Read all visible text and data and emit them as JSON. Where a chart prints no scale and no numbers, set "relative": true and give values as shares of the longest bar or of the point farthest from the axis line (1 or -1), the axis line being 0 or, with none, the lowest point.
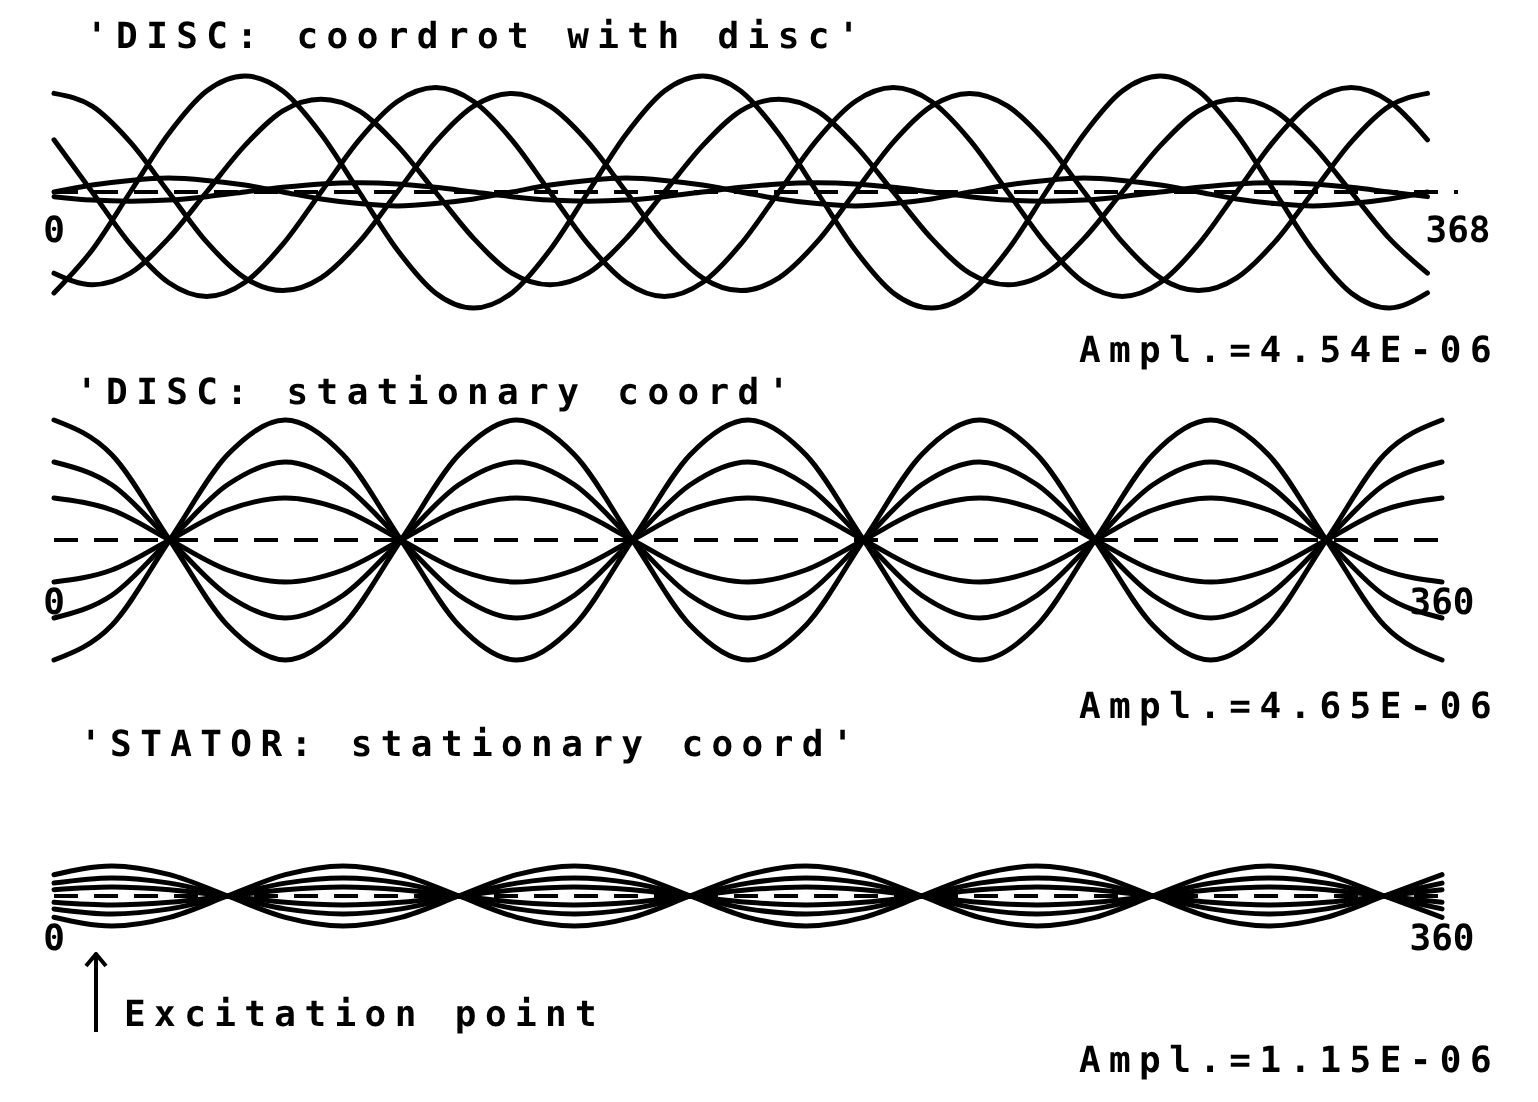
{
  "chart_data": [
    {
      "type": "line",
      "title": "'DISC: coordrot with disc'",
      "relative": true,
      "marker": "none",
      "line_style": "solid",
      "xlim": [
        0,
        368
      ],
      "xticks": [
        0,
        368
      ],
      "ref_lines": [
        {
          "axis": "y",
          "value": 0,
          "line_style": "dashed",
          "color": "#000000"
        }
      ],
      "annotations": [
        "Ampl.=4.54E-06"
      ],
      "x": [
        0,
        10,
        20,
        30,
        40,
        50,
        60,
        70,
        80,
        90,
        100,
        110,
        120,
        130,
        140,
        150,
        160,
        170,
        180,
        190,
        200,
        210,
        220,
        230,
        240,
        250,
        260,
        270,
        280,
        290,
        300,
        310,
        320,
        330,
        340,
        350,
        360
      ],
      "series": [
        {
          "color": "#000000",
          "values": [
            0.85,
            0.74,
            0.43,
            0,
            -0.43,
            -0.74,
            -0.85,
            -0.74,
            -0.43,
            0,
            0.43,
            0.74,
            0.85,
            0.74,
            0.43,
            0,
            -0.43,
            -0.74,
            -0.85,
            -0.74,
            -0.43,
            0,
            0.43,
            0.74,
            0.85,
            0.74,
            0.43,
            0,
            -0.43,
            -0.74,
            -0.85,
            -0.74,
            -0.43,
            0,
            0.43,
            0.74,
            0.85
          ]
        },
        {
          "color": "#000000",
          "values": [
            -0.87,
            -0.5,
            0,
            0.5,
            0.87,
            1,
            0.87,
            0.5,
            0,
            -0.5,
            -0.87,
            -1,
            -0.87,
            -0.5,
            0,
            0.5,
            0.87,
            1,
            0.87,
            0.5,
            0,
            -0.5,
            -0.87,
            -1,
            -0.87,
            -0.5,
            0,
            0.5,
            0.87,
            1,
            0.87,
            0.5,
            0,
            -0.5,
            -0.87,
            -1,
            -0.87
          ]
        },
        {
          "color": "#000000",
          "values": [
            -0.7,
            -0.8,
            -0.7,
            -0.4,
            0,
            0.4,
            0.7,
            0.8,
            0.7,
            0.4,
            0,
            -0.4,
            -0.7,
            -0.8,
            -0.7,
            -0.4,
            0,
            0.4,
            0.7,
            0.8,
            0.7,
            0.4,
            0,
            -0.4,
            -0.7,
            -0.8,
            -0.7,
            -0.4,
            0,
            0.4,
            0.7,
            0.8,
            0.7,
            0.4,
            0,
            -0.4,
            -0.7
          ]
        },
        {
          "color": "#000000",
          "values": [
            0.45,
            0,
            -0.45,
            -0.78,
            -0.9,
            -0.78,
            -0.45,
            0,
            0.45,
            0.78,
            0.9,
            0.78,
            0.45,
            0,
            -0.45,
            -0.78,
            -0.9,
            -0.78,
            -0.45,
            0,
            0.45,
            0.78,
            0.9,
            0.78,
            0.45,
            0,
            -0.45,
            -0.78,
            -0.9,
            -0.78,
            -0.45,
            0,
            0.45,
            0.78,
            0.9,
            0.78,
            0.45
          ]
        },
        {
          "color": "#000000",
          "values": [
            0,
            0.06,
            0.1,
            0.12,
            0.1,
            0.06,
            0,
            -0.06,
            -0.1,
            -0.12,
            -0.1,
            -0.06,
            0,
            0.06,
            0.1,
            0.12,
            0.1,
            0.06,
            0,
            -0.06,
            -0.1,
            -0.12,
            -0.1,
            -0.06,
            0,
            0.06,
            0.1,
            0.12,
            0.1,
            0.06,
            0,
            -0.06,
            -0.1,
            -0.12,
            -0.1,
            -0.06,
            0
          ]
        },
        {
          "color": "#000000",
          "values": [
            -0.04,
            -0.07,
            -0.08,
            -0.07,
            -0.04,
            0,
            0.04,
            0.07,
            0.08,
            0.07,
            0.04,
            0,
            -0.04,
            -0.07,
            -0.08,
            -0.07,
            -0.04,
            0,
            0.04,
            0.07,
            0.08,
            0.07,
            0.04,
            0,
            -0.04,
            -0.07,
            -0.08,
            -0.07,
            -0.04,
            0,
            0.04,
            0.07,
            0.08,
            0.07,
            0.04,
            0,
            -0.04
          ]
        }
      ]
    },
    {
      "type": "line",
      "title": "'DISC: stationary coord'",
      "relative": true,
      "marker": "none",
      "line_style": "solid",
      "xlim": [
        0,
        360
      ],
      "xticks": [
        0,
        360
      ],
      "ref_lines": [
        {
          "axis": "y",
          "value": 0,
          "line_style": "dashed",
          "color": "#000000"
        }
      ],
      "annotations": [
        "Ampl.=4.65E-06"
      ],
      "x": [
        0,
        15,
        30,
        45,
        60,
        75,
        90,
        105,
        120,
        135,
        150,
        165,
        180,
        195,
        210,
        225,
        240,
        255,
        270,
        285,
        300,
        315,
        330,
        345,
        360
      ],
      "series": [
        {
          "color": "#000000",
          "values": [
            1,
            0.71,
            0,
            -0.71,
            -1,
            -0.71,
            0,
            0.71,
            1,
            0.71,
            0,
            -0.71,
            -1,
            -0.71,
            0,
            0.71,
            1,
            0.71,
            0,
            -0.71,
            -1,
            -0.71,
            0,
            0.71,
            1
          ]
        },
        {
          "color": "#000000",
          "values": [
            0.65,
            0.46,
            0,
            -0.46,
            -0.65,
            -0.46,
            0,
            0.46,
            0.65,
            0.46,
            0,
            -0.46,
            -0.65,
            -0.46,
            0,
            0.46,
            0.65,
            0.46,
            0,
            -0.46,
            -0.65,
            -0.46,
            0,
            0.46,
            0.65
          ]
        },
        {
          "color": "#000000",
          "values": [
            0.35,
            0.25,
            0,
            -0.25,
            -0.35,
            -0.25,
            0,
            0.25,
            0.35,
            0.25,
            0,
            -0.25,
            -0.35,
            -0.25,
            0,
            0.25,
            0.35,
            0.25,
            0,
            -0.25,
            -0.35,
            -0.25,
            0,
            0.25,
            0.35
          ]
        },
        {
          "color": "#000000",
          "values": [
            -0.35,
            -0.25,
            0,
            0.25,
            0.35,
            0.25,
            0,
            -0.25,
            -0.35,
            -0.25,
            0,
            0.25,
            0.35,
            0.25,
            0,
            -0.25,
            -0.35,
            -0.25,
            0,
            0.25,
            0.35,
            0.25,
            0,
            -0.25,
            -0.35
          ]
        },
        {
          "color": "#000000",
          "values": [
            -0.65,
            -0.46,
            0,
            0.46,
            0.65,
            0.46,
            0,
            -0.46,
            -0.65,
            -0.46,
            0,
            0.46,
            0.65,
            0.46,
            0,
            -0.46,
            -0.65,
            -0.46,
            0,
            0.46,
            0.65,
            0.46,
            0,
            -0.46,
            -0.65
          ]
        },
        {
          "color": "#000000",
          "values": [
            -1,
            -0.71,
            0,
            0.71,
            1,
            0.71,
            0,
            -0.71,
            -1,
            -0.71,
            0,
            0.71,
            1,
            0.71,
            0,
            -0.71,
            -1,
            -0.71,
            0,
            0.71,
            1,
            0.71,
            0,
            -0.71,
            -1
          ]
        }
      ]
    },
    {
      "type": "line",
      "title": "'STATOR: stationary coord'",
      "relative": true,
      "marker": "none",
      "line_style": "solid",
      "xlim": [
        0,
        360
      ],
      "xticks": [
        0,
        360
      ],
      "ref_lines": [
        {
          "axis": "y",
          "value": 0,
          "line_style": "dashed",
          "color": "#000000"
        }
      ],
      "annotations": [
        "Excitation point",
        "Ampl.=1.15E-06"
      ],
      "x": [
        0,
        15,
        30,
        45,
        60,
        75,
        90,
        105,
        120,
        135,
        150,
        165,
        180,
        195,
        210,
        225,
        240,
        255,
        270,
        285,
        300,
        315,
        330,
        345,
        360
      ],
      "series": [
        {
          "color": "#000000",
          "values": [
            0.71,
            1,
            0.71,
            0,
            -0.71,
            -1,
            -0.71,
            0,
            0.71,
            1,
            0.71,
            0,
            -0.71,
            -1,
            -0.71,
            0,
            0.71,
            1,
            0.71,
            0,
            -0.71,
            -1,
            -0.71,
            0,
            0.71
          ]
        },
        {
          "color": "#000000",
          "values": [
            0.43,
            0.6,
            0.43,
            0,
            -0.43,
            -0.6,
            -0.43,
            0,
            0.43,
            0.6,
            0.43,
            0,
            -0.43,
            -0.6,
            -0.43,
            0,
            0.43,
            0.6,
            0.43,
            0,
            -0.43,
            -0.6,
            -0.43,
            0,
            0.43
          ]
        },
        {
          "color": "#000000",
          "values": [
            0.21,
            0.3,
            0.21,
            0,
            -0.21,
            -0.3,
            -0.21,
            0,
            0.21,
            0.3,
            0.21,
            0,
            -0.21,
            -0.3,
            -0.21,
            0,
            0.21,
            0.3,
            0.21,
            0,
            -0.21,
            -0.3,
            -0.21,
            0,
            0.21
          ]
        },
        {
          "color": "#000000",
          "values": [
            -0.21,
            -0.3,
            -0.21,
            0,
            0.21,
            0.3,
            0.21,
            0,
            -0.21,
            -0.3,
            -0.21,
            0,
            0.21,
            0.3,
            0.21,
            0,
            -0.21,
            -0.3,
            -0.21,
            0,
            0.21,
            0.3,
            0.21,
            0,
            -0.21
          ]
        },
        {
          "color": "#000000",
          "values": [
            -0.43,
            -0.6,
            -0.43,
            0,
            0.43,
            0.6,
            0.43,
            0,
            -0.43,
            -0.6,
            -0.43,
            0,
            0.43,
            0.6,
            0.43,
            0,
            -0.43,
            -0.6,
            -0.43,
            0,
            0.43,
            0.6,
            0.43,
            0,
            -0.43
          ]
        },
        {
          "color": "#000000",
          "values": [
            -0.71,
            -1,
            -0.71,
            0,
            0.71,
            1,
            0.71,
            0,
            -0.71,
            -1,
            -0.71,
            0,
            0.71,
            1,
            0.71,
            0,
            -0.71,
            -1,
            -0.71,
            0,
            0.71,
            1,
            0.71,
            0,
            -0.71
          ]
        }
      ]
    }
  ]
}
